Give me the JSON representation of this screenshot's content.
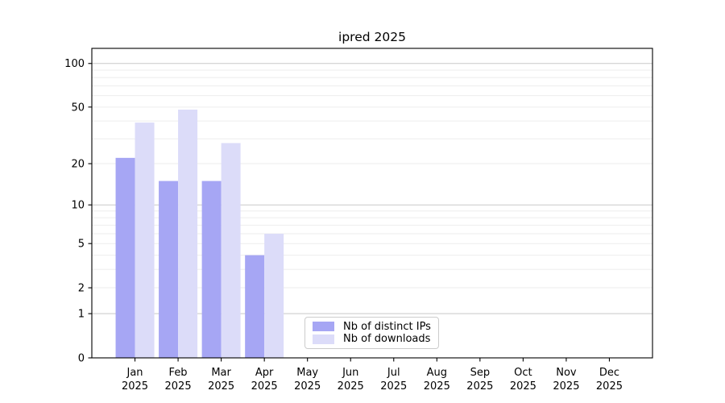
{
  "chart_data": {
    "type": "bar",
    "title": "ipred 2025",
    "categories": [
      "Jan",
      "Feb",
      "Mar",
      "Apr",
      "May",
      "Jun",
      "Jul",
      "Aug",
      "Sep",
      "Oct",
      "Nov",
      "Dec"
    ],
    "year": "2025",
    "series": [
      {
        "name": "Nb of distinct IPs",
        "color": "#a6a6f4",
        "values": [
          22,
          15,
          15,
          4,
          0,
          0,
          0,
          0,
          0,
          0,
          0,
          0
        ]
      },
      {
        "name": "Nb of downloads",
        "color": "#dcdcf9",
        "values": [
          39,
          48,
          28,
          6,
          0,
          0,
          0,
          0,
          0,
          0,
          0,
          0
        ]
      }
    ],
    "y_axis": {
      "scale": "symlog",
      "ticks": [
        0,
        1,
        2,
        5,
        10,
        20,
        50,
        100
      ],
      "major_gridlines": [
        1,
        10,
        100
      ],
      "minor_gridlines": [
        2,
        3,
        4,
        5,
        6,
        7,
        8,
        9,
        20,
        30,
        40,
        50,
        60,
        70,
        80,
        90
      ],
      "max": 127
    },
    "legend_position": "bottom-center",
    "grid": true,
    "colors": {
      "axis": "#000000",
      "text": "#000000",
      "major_grid": "#c8c8c8",
      "minor_grid": "#ededed",
      "legend_border": "#cccccc"
    }
  }
}
